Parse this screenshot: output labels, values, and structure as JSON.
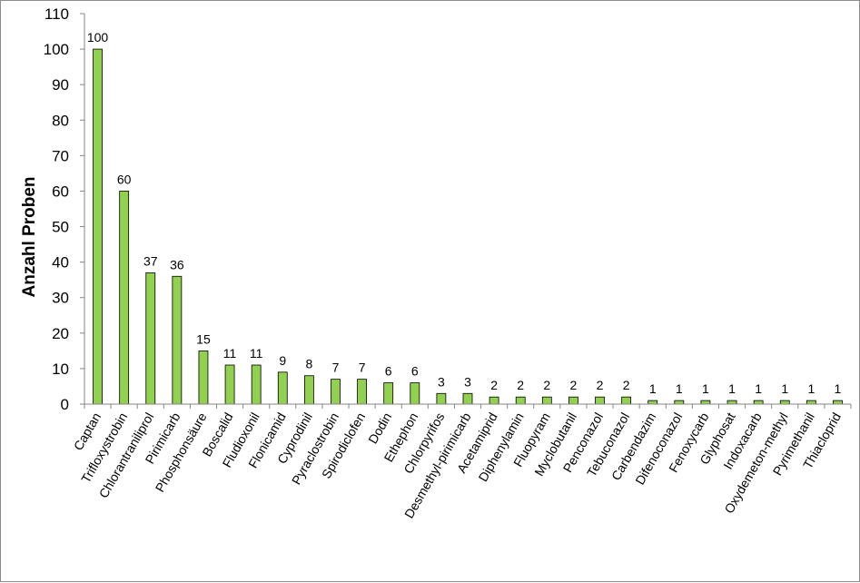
{
  "chart_data": {
    "type": "bar",
    "title": "",
    "xlabel": "",
    "ylabel": "Anzahl Proben",
    "ylim": [
      0,
      110
    ],
    "yticks": [
      0,
      10,
      20,
      30,
      40,
      50,
      60,
      70,
      80,
      90,
      100,
      110
    ],
    "grid": false,
    "legend": "none",
    "bar_color": "#92d050",
    "bar_edge_color": "#000000",
    "categories": [
      "Captan",
      "Trifloxystrobin",
      "Chlorantraniliprol",
      "Pirimicarb",
      "Phosphonsäure",
      "Boscalid",
      "Fludioxonil",
      "Flonicamid",
      "Cyprodinil",
      "Pyraclostrobin",
      "Spirodiclofen",
      "Dodin",
      "Ethephon",
      "Chlorpyrifos",
      "Desmethyl-pirimicarb",
      "Acetamiprid",
      "Diphenylamin",
      "Fluopyram",
      "Myclobutanil",
      "Penconazol",
      "Tebuconazol",
      "Carbendazim",
      "Difenoconazol",
      "Fenoxycarb",
      "Glyphosat",
      "Indoxacarb",
      "Oxydemeton-methyl",
      "Pyrimethanil",
      "Thiacloprid"
    ],
    "values": [
      100,
      60,
      37,
      36,
      15,
      11,
      11,
      9,
      8,
      7,
      7,
      6,
      6,
      3,
      3,
      2,
      2,
      2,
      2,
      2,
      2,
      1,
      1,
      1,
      1,
      1,
      1,
      1,
      1
    ]
  }
}
